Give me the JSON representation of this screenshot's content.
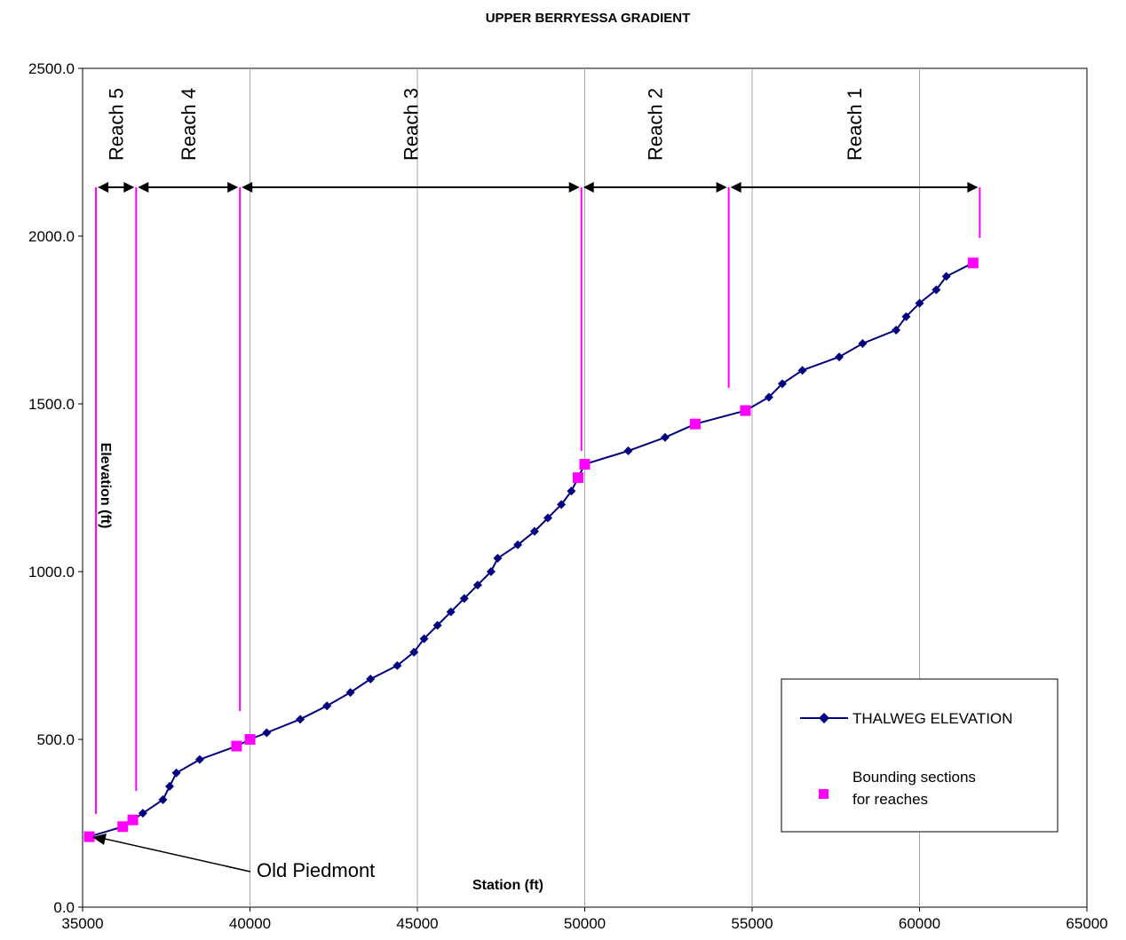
{
  "chart_data": {
    "type": "line",
    "title": "UPPER BERRYESSA GRADIENT",
    "xlabel": "Station (ft)",
    "ylabel": "Elevation (ft)",
    "xlim": [
      35000,
      65000
    ],
    "ylim": [
      0,
      2500
    ],
    "x_ticks": [
      "35000",
      "40000",
      "45000",
      "50000",
      "55000",
      "60000",
      "65000"
    ],
    "y_ticks": [
      "0.0",
      "500.0",
      "1000.0",
      "1500.0",
      "2000.0",
      "2500.0"
    ],
    "grid": "vertical",
    "legend_position": "lower-right",
    "series": [
      {
        "name": "THALWEG ELEVATION",
        "color": "#000080",
        "marker": "diamond",
        "points": [
          [
            35200,
            210
          ],
          [
            36200,
            240
          ],
          [
            36500,
            260
          ],
          [
            36800,
            280
          ],
          [
            37400,
            320
          ],
          [
            37600,
            360
          ],
          [
            37800,
            400
          ],
          [
            38500,
            440
          ],
          [
            39600,
            480
          ],
          [
            40000,
            500
          ],
          [
            40500,
            520
          ],
          [
            41500,
            560
          ],
          [
            42300,
            600
          ],
          [
            43000,
            640
          ],
          [
            43600,
            680
          ],
          [
            44400,
            720
          ],
          [
            44900,
            760
          ],
          [
            45200,
            800
          ],
          [
            45600,
            840
          ],
          [
            46000,
            880
          ],
          [
            46400,
            920
          ],
          [
            46800,
            960
          ],
          [
            47200,
            1000
          ],
          [
            47400,
            1040
          ],
          [
            48000,
            1080
          ],
          [
            48500,
            1120
          ],
          [
            48900,
            1160
          ],
          [
            49300,
            1200
          ],
          [
            49600,
            1240
          ],
          [
            49800,
            1280
          ],
          [
            50000,
            1320
          ],
          [
            51300,
            1360
          ],
          [
            52400,
            1400
          ],
          [
            53300,
            1440
          ],
          [
            54800,
            1480
          ],
          [
            55500,
            1520
          ],
          [
            55900,
            1560
          ],
          [
            56500,
            1600
          ],
          [
            57600,
            1640
          ],
          [
            58300,
            1680
          ],
          [
            59300,
            1720
          ],
          [
            59600,
            1760
          ],
          [
            60000,
            1800
          ],
          [
            60500,
            1840
          ],
          [
            60800,
            1880
          ],
          [
            61600,
            1920
          ]
        ]
      },
      {
        "name": "Bounding sections for reaches",
        "color": "#FF00FF",
        "marker": "square",
        "points": [
          [
            35200,
            210
          ],
          [
            36200,
            240
          ],
          [
            36500,
            260
          ],
          [
            39600,
            480
          ],
          [
            40000,
            500
          ],
          [
            49800,
            1280
          ],
          [
            50000,
            1320
          ],
          [
            53300,
            1440
          ],
          [
            54800,
            1480
          ],
          [
            61600,
            1920
          ]
        ]
      }
    ],
    "reach_boundaries": [
      35400,
      36600,
      39700,
      49900,
      54300,
      61800
    ],
    "reaches": [
      {
        "label": "Reach 5",
        "from": 35400,
        "to": 36600
      },
      {
        "label": "Reach 4",
        "from": 36600,
        "to": 39700
      },
      {
        "label": "Reach 3",
        "from": 39700,
        "to": 49900
      },
      {
        "label": "Reach 2",
        "from": 49900,
        "to": 54300
      },
      {
        "label": "Reach 1",
        "from": 54300,
        "to": 61800
      }
    ],
    "annotation": {
      "text": "Old Piedmont",
      "x": 35300,
      "y": 210
    }
  },
  "legend": {
    "thalweg": "THALWEG ELEVATION",
    "bounding_line1": "Bounding sections",
    "bounding_line2": "for reaches"
  }
}
